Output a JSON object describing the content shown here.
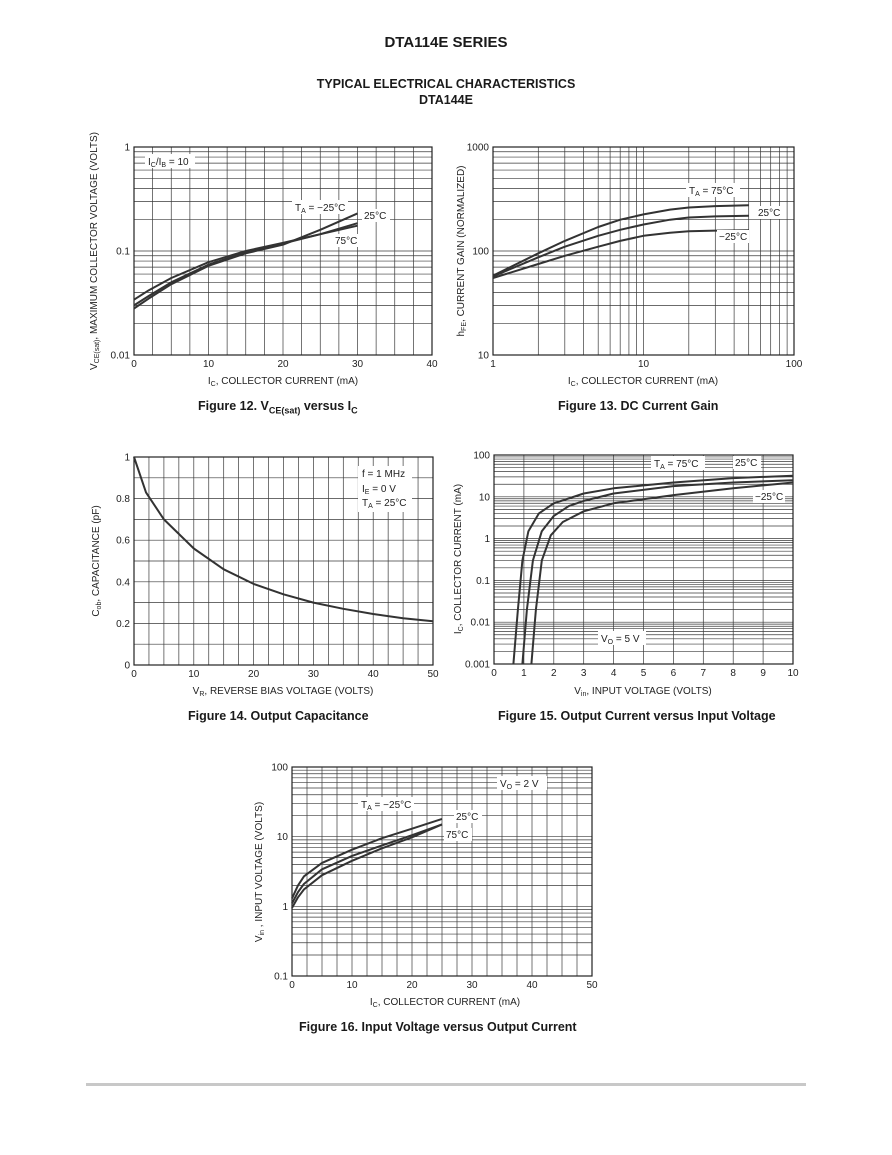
{
  "page": {
    "series_title": "DTA114E SERIES",
    "section_title": "TYPICAL ELECTRICAL CHARACTERISTICS",
    "section_subtitle": "DTA144E"
  },
  "colors": {
    "curve": "#333333",
    "grid": "#3a3a3a",
    "text": "#222222",
    "rule": "#c8c8c8"
  },
  "chart_data": [
    {
      "id": "fig12",
      "type": "line",
      "caption": "Figure 12. VCE(sat) versus IC",
      "xscale": "linear",
      "yscale": "log",
      "xlim": [
        0,
        40
      ],
      "ylim": [
        0.01,
        1
      ],
      "xticks": [
        0,
        10,
        20,
        30,
        40
      ],
      "xtick_labels": [
        "0",
        "10",
        "20",
        "30",
        "40"
      ],
      "yticks": [
        0.01,
        0.1,
        1
      ],
      "ytick_labels": [
        "0.01",
        "0.1",
        "1"
      ],
      "xlabel": "IC, COLLECTOR CURRENT (mA)",
      "ylabel": "VCE(sat), MAXIMUM COLLECTOR VOLTAGE (VOLTS)",
      "annotations": [
        "IC/IB = 10",
        "TA = −25°C",
        "25°C",
        "75°C"
      ],
      "series": [
        {
          "name": "TA = −25°C",
          "x": [
            0,
            2,
            5,
            10,
            15,
            20,
            25,
            30
          ],
          "y": [
            0.028,
            0.035,
            0.048,
            0.072,
            0.095,
            0.115,
            0.16,
            0.23
          ]
        },
        {
          "name": "25°C",
          "x": [
            0,
            2,
            5,
            10,
            15,
            20,
            25,
            30
          ],
          "y": [
            0.03,
            0.037,
            0.05,
            0.074,
            0.097,
            0.118,
            0.145,
            0.185
          ]
        },
        {
          "name": "75°C",
          "x": [
            0,
            2,
            5,
            10,
            15,
            20,
            25,
            30
          ],
          "y": [
            0.034,
            0.042,
            0.055,
            0.078,
            0.1,
            0.12,
            0.145,
            0.175
          ]
        }
      ]
    },
    {
      "id": "fig13",
      "type": "line",
      "caption": "Figure 13. DC Current Gain",
      "xscale": "log",
      "yscale": "log",
      "xlim": [
        1,
        100
      ],
      "ylim": [
        10,
        1000
      ],
      "xticks": [
        1,
        10,
        100
      ],
      "xtick_labels": [
        "1",
        "10",
        "100"
      ],
      "yticks": [
        10,
        100,
        1000
      ],
      "ytick_labels": [
        "10",
        "100",
        "1000"
      ],
      "xlabel": "IC, COLLECTOR CURRENT (mA)",
      "ylabel": "hFE, CURRENT GAIN (NORMALIZED)",
      "annotations": [
        "TA = 75°C",
        "25°C",
        "−25°C"
      ],
      "series": [
        {
          "name": "TA = 75°C",
          "x": [
            1,
            2,
            3,
            5,
            7,
            10,
            15,
            20,
            30,
            50
          ],
          "y": [
            58,
            95,
            125,
            170,
            200,
            225,
            250,
            262,
            270,
            275
          ]
        },
        {
          "name": "25°C",
          "x": [
            1,
            2,
            3,
            5,
            7,
            10,
            15,
            20,
            30,
            50
          ],
          "y": [
            57,
            87,
            110,
            140,
            160,
            180,
            200,
            210,
            215,
            218
          ]
        },
        {
          "name": "−25°C",
          "x": [
            1,
            2,
            3,
            5,
            7,
            10,
            15,
            20,
            30,
            50
          ],
          "y": [
            55,
            75,
            90,
            110,
            125,
            140,
            150,
            155,
            157,
            158
          ]
        }
      ]
    },
    {
      "id": "fig14",
      "type": "line",
      "caption": "Figure 14. Output Capacitance",
      "xscale": "linear",
      "yscale": "linear",
      "xlim": [
        0,
        50
      ],
      "ylim": [
        0,
        1
      ],
      "xticks": [
        0,
        10,
        20,
        30,
        40,
        50
      ],
      "xtick_labels": [
        "0",
        "10",
        "20",
        "30",
        "40",
        "50"
      ],
      "yticks": [
        0,
        0.2,
        0.4,
        0.6,
        0.8,
        1
      ],
      "ytick_labels": [
        "0",
        "0.2",
        "0.4",
        "0.6",
        "0.8",
        "1"
      ],
      "xlabel": "VR, REVERSE BIAS VOLTAGE (VOLTS)",
      "ylabel": "Cob, CAPACITANCE (pF)",
      "annotations": [
        "f = 1 MHz",
        "IE = 0 V",
        "TA = 25°C"
      ],
      "series": [
        {
          "name": "Cob",
          "x": [
            0,
            2,
            5,
            10,
            15,
            20,
            25,
            30,
            35,
            40,
            45,
            50
          ],
          "y": [
            1.0,
            0.83,
            0.7,
            0.56,
            0.46,
            0.39,
            0.34,
            0.3,
            0.27,
            0.245,
            0.225,
            0.21
          ]
        }
      ]
    },
    {
      "id": "fig15",
      "type": "line",
      "caption": "Figure 15. Output Current versus Input Voltage",
      "xscale": "linear",
      "yscale": "log",
      "xlim": [
        0,
        10
      ],
      "ylim": [
        0.001,
        100
      ],
      "xticks": [
        0,
        1,
        2,
        3,
        4,
        5,
        6,
        7,
        8,
        9,
        10
      ],
      "xtick_labels": [
        "0",
        "1",
        "2",
        "3",
        "4",
        "5",
        "6",
        "7",
        "8",
        "9",
        "10"
      ],
      "yticks": [
        0.001,
        0.01,
        0.1,
        1,
        10,
        100
      ],
      "ytick_labels": [
        "0.001",
        "0.01",
        "0.1",
        "1",
        "10",
        "100"
      ],
      "xlabel": "Vin, INPUT VOLTAGE (VOLTS)",
      "ylabel": "IC, COLLECTOR CURRENT (mA)",
      "annotations": [
        "TA = 75°C",
        "25°C",
        "−25°C",
        "VO = 5 V"
      ],
      "series": [
        {
          "name": "TA = 75°C",
          "x": [
            0.65,
            0.8,
            0.95,
            1.15,
            1.5,
            2,
            3,
            4,
            6,
            8,
            10
          ],
          "y": [
            0.001,
            0.02,
            0.3,
            1.5,
            4,
            7,
            12,
            16,
            22,
            28,
            32
          ]
        },
        {
          "name": "25°C",
          "x": [
            0.95,
            1.1,
            1.3,
            1.6,
            2,
            2.5,
            3,
            4,
            6,
            8,
            10
          ],
          "y": [
            0.001,
            0.02,
            0.3,
            1.5,
            3.5,
            6,
            8,
            12,
            18,
            22,
            25
          ]
        },
        {
          "name": "−25°C",
          "x": [
            1.25,
            1.4,
            1.6,
            1.9,
            2.3,
            3,
            4,
            6,
            8,
            10
          ],
          "y": [
            0.001,
            0.02,
            0.3,
            1.2,
            2.5,
            4.5,
            7,
            11,
            16,
            22
          ]
        }
      ]
    },
    {
      "id": "fig16",
      "type": "line",
      "caption": "Figure 16. Input Voltage versus Output Current",
      "xscale": "linear",
      "yscale": "log",
      "xlim": [
        0,
        50
      ],
      "ylim": [
        0.1,
        100
      ],
      "xticks": [
        0,
        10,
        20,
        30,
        40,
        50
      ],
      "xtick_labels": [
        "0",
        "10",
        "20",
        "30",
        "40",
        "50"
      ],
      "yticks": [
        0.1,
        1,
        10,
        100
      ],
      "ytick_labels": [
        "0.1",
        "1",
        "10",
        "100"
      ],
      "xlabel": "IC, COLLECTOR CURRENT (mA)",
      "ylabel": "Vin , INPUT VOLTAGE (VOLTS)",
      "annotations": [
        "VO = 2 V",
        "TA = −25°C",
        "25°C",
        "75°C"
      ],
      "series": [
        {
          "name": "TA = −25°C",
          "x": [
            0,
            1,
            2,
            5,
            10,
            15,
            20,
            25
          ],
          "y": [
            1.3,
            2.0,
            2.7,
            4.2,
            6.5,
            9.5,
            13,
            18
          ]
        },
        {
          "name": "25°C",
          "x": [
            0,
            1,
            2,
            5,
            10,
            15,
            20,
            25
          ],
          "y": [
            1.1,
            1.6,
            2.1,
            3.4,
            5.3,
            7.5,
            10.5,
            15
          ]
        },
        {
          "name": "75°C",
          "x": [
            0,
            1,
            2,
            5,
            10,
            15,
            20,
            25
          ],
          "y": [
            0.95,
            1.35,
            1.75,
            2.8,
            4.5,
            6.8,
            9.8,
            15
          ]
        }
      ]
    }
  ]
}
